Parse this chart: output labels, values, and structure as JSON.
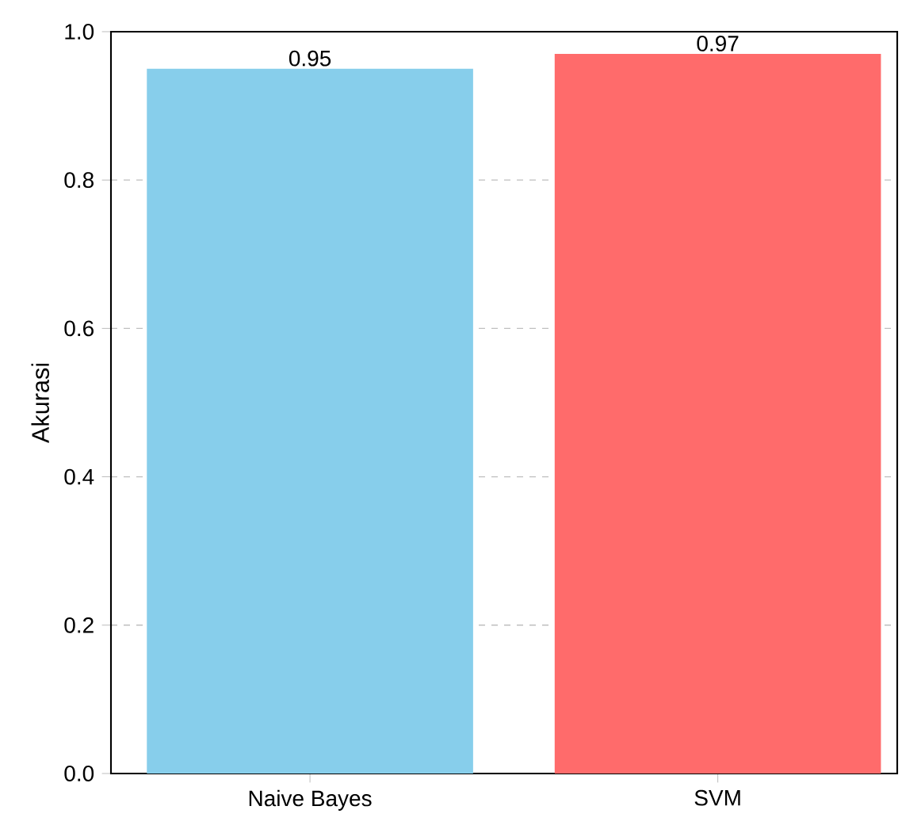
{
  "chart_data": {
    "type": "bar",
    "ylabel": "Akurasi",
    "categories": [
      "Naive Bayes",
      "SVM"
    ],
    "values": [
      0.95,
      0.97
    ],
    "colors": [
      "#87ceeb",
      "#ff6b6b"
    ],
    "ylim": [
      0,
      1
    ],
    "yticks": [
      {
        "value": 0,
        "label": "0.0"
      },
      {
        "value": 0.2,
        "label": "0.2"
      },
      {
        "value": 0.4,
        "label": "0.4"
      },
      {
        "value": 0.6,
        "label": "0.6"
      },
      {
        "value": 0.8,
        "label": "0.8"
      },
      {
        "value": 1,
        "label": "1.0"
      }
    ],
    "grid": "y",
    "line_style": "dashed",
    "data_labels": true
  }
}
